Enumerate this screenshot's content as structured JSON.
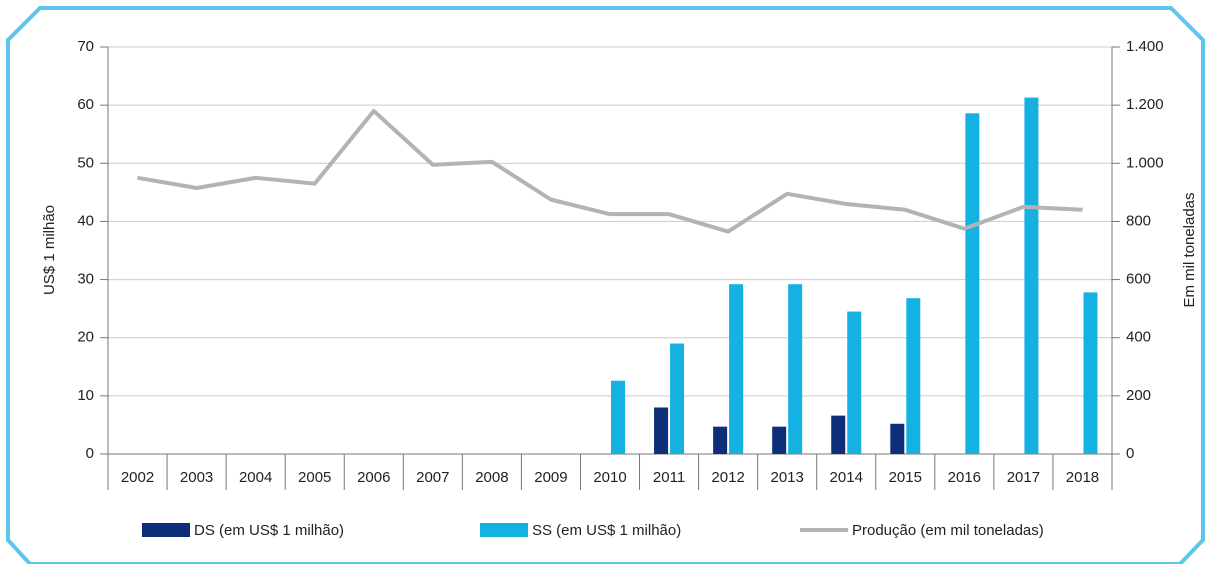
{
  "chart_data": {
    "type": "bar-line",
    "categories": [
      "2002",
      "2003",
      "2004",
      "2005",
      "2006",
      "2007",
      "2008",
      "2009",
      "2010",
      "2011",
      "2012",
      "2013",
      "2014",
      "2015",
      "2016",
      "2017",
      "2018"
    ],
    "series": [
      {
        "name": "DS (em US$ 1 milhão)",
        "color": "#0d2f7a",
        "type": "bar",
        "values": [
          null,
          null,
          null,
          null,
          null,
          null,
          null,
          null,
          null,
          8,
          4.7,
          4.7,
          6.6,
          5.2,
          null,
          null,
          null
        ]
      },
      {
        "name": "SS (em US$ 1 milhão)",
        "color": "#16b1e3",
        "type": "bar",
        "values": [
          null,
          null,
          null,
          null,
          null,
          null,
          null,
          null,
          12.6,
          19,
          29.2,
          29.2,
          24.5,
          26.8,
          58.6,
          61.3,
          27.8
        ]
      },
      {
        "name": "Produção (em mil toneladas)",
        "color": "#b3b3b3",
        "type": "line",
        "axis": "y2",
        "values": [
          950,
          915,
          950,
          930,
          1180,
          995,
          1005,
          875,
          825,
          825,
          765,
          895,
          860,
          840,
          775,
          850,
          840
        ]
      }
    ],
    "ylabel": "US$ 1 milhão",
    "y2label": "Em mil toneladas",
    "ylim": [
      0,
      70
    ],
    "yticks": [
      0,
      10,
      20,
      30,
      40,
      50,
      60,
      70
    ],
    "y2lim": [
      0,
      1400
    ],
    "y2ticks": [
      0,
      200,
      400,
      600,
      800,
      {
        "value": 1000,
        "label": "1.000"
      },
      {
        "value": 1200,
        "label": "1.200"
      },
      {
        "value": 1400,
        "label": "1.400"
      }
    ],
    "grid": true,
    "legend": "bottom"
  }
}
